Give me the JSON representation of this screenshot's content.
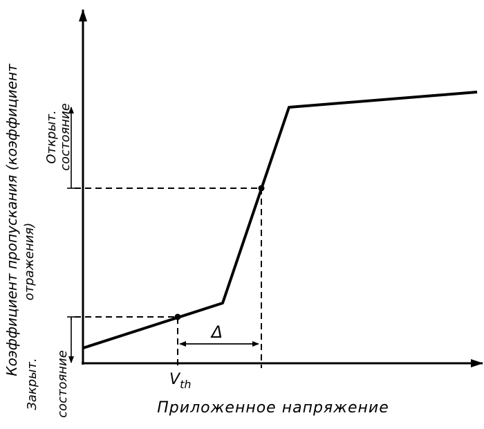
{
  "y_axis_label": {
    "line1": "Коэффициент пропускания (коэффициент",
    "line2": "отражения)"
  },
  "x_axis_label": "Приложенное напряжение",
  "open_state": {
    "line1": "Открыт.",
    "line2": "состояние"
  },
  "closed_state": {
    "line1": "Закрыт.",
    "line2": "состояние"
  },
  "delta": "Δ",
  "threshold": {
    "base": "V",
    "sub": "th"
  }
}
